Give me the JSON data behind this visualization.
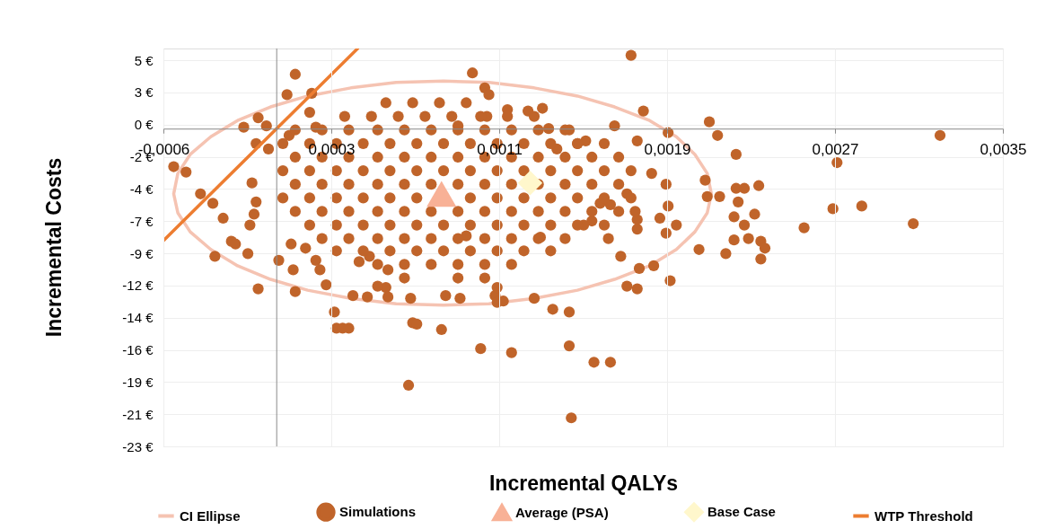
{
  "chart_data": {
    "type": "scatter",
    "xlabel": "Incremental QALYs",
    "ylabel": "Incremental Costs",
    "xlim": [
      -0.00055,
      0.003525
    ],
    "ylim": [
      -23.4,
      5.9
    ],
    "xticks": [
      {
        "value": -0.00055,
        "label": "-0,0006"
      },
      {
        "value": 0.000265,
        "label": "0,0003"
      },
      {
        "value": 0.00108,
        "label": "0,0011"
      },
      {
        "value": 0.001895,
        "label": "0,0019"
      },
      {
        "value": 0.00271,
        "label": "0,0027"
      },
      {
        "value": 0.003525,
        "label": "0,0035"
      }
    ],
    "yticks": [
      {
        "value": -23.4,
        "label": "-23 €"
      },
      {
        "value": -21.03,
        "label": "-21 €"
      },
      {
        "value": -18.66,
        "label": "-19 €"
      },
      {
        "value": -16.29,
        "label": "-16 €"
      },
      {
        "value": -13.92,
        "label": "-14 €"
      },
      {
        "value": -11.55,
        "label": "-12 €"
      },
      {
        "value": -9.18,
        "label": "-9 €"
      },
      {
        "value": -6.81,
        "label": "-7 €"
      },
      {
        "value": -4.44,
        "label": "-4 €"
      },
      {
        "value": -2.07,
        "label": "-2 €"
      },
      {
        "value": 0.3,
        "label": "0 €"
      },
      {
        "value": 2.67,
        "label": "3 €"
      },
      {
        "value": 5.04,
        "label": "5 €"
      }
    ],
    "grid": true,
    "legend": "bottom",
    "series": [
      {
        "name": "CI Ellipse",
        "type": "line",
        "color": "#f5c3b2",
        "x": [
          -0.0005,
          -0.00048,
          -0.00042,
          -0.00032,
          -0.00019,
          -3e-05,
          0.00015,
          0.00036,
          0.00058,
          0.00081,
          0.00103,
          0.00125,
          0.00146,
          0.00164,
          0.00181,
          0.00194,
          0.00203,
          0.00209,
          0.00211,
          null,
          -0.0005,
          -0.00048,
          -0.00042,
          -0.00032,
          -0.00019,
          -3e-05,
          0.00015,
          0.00036,
          0.00058,
          0.00081,
          0.00103,
          0.00125,
          0.00146,
          0.00164,
          0.00181,
          0.00194,
          0.00203,
          0.00209,
          0.00211
        ],
        "values": [
          -4.8,
          -3.3,
          -1.9,
          -0.6,
          0.6,
          1.6,
          2.4,
          3.0,
          3.4,
          3.5,
          3.4,
          3.0,
          2.4,
          1.6,
          0.6,
          -0.6,
          -1.9,
          -3.3,
          -4.8,
          null,
          -4.8,
          -6.2,
          -7.6,
          -8.9,
          -10.1,
          -11.1,
          -11.9,
          -12.5,
          -12.9,
          -13.0,
          -12.9,
          -12.5,
          -11.9,
          -11.1,
          -10.1,
          -8.9,
          -7.6,
          -6.2,
          -4.8
        ]
      },
      {
        "name": "Simulations",
        "marker": "circle",
        "color": "#c0642a",
        "x": [
          -0.0005,
          -0.00044,
          -0.00037,
          -0.00031,
          -0.00026,
          -0.00022,
          -0.0002,
          -0.0003,
          -9e-05,
          -0.00013,
          -0.00011,
          -0.0001,
          -0.00012,
          -0.00016,
          -9e-05,
          -0.0001,
          -5e-05,
          -4e-05,
          6e-05,
          9e-05,
          5e-05,
          0.00017,
          0.00016,
          0.00019,
          7e-05,
          9e-05,
          0.00014,
          0.00019,
          0.00021,
          0.00028,
          0.00029,
          0.00032,
          0.00035,
          0.00024,
          0.0004,
          0.00044,
          0.00045,
          0.00053,
          0.00054,
          0.00064,
          0.00066,
          0.0008,
          0.00092,
          0.00095,
          0.00101,
          0.00103,
          0.00102,
          0.00088,
          0.00089,
          0.00099,
          0.00114,
          0.00106,
          0.0011,
          0.00107,
          0.00125,
          0.00134,
          0.00142,
          0.00143,
          0.00154,
          0.00162,
          0.00142,
          0.00128,
          0.00129,
          0.00136,
          0.00132,
          0.00142,
          0.00146,
          0.0015,
          0.00164,
          0.00172,
          0.00178,
          0.00182,
          0.00189,
          0.0019,
          0.00186,
          0.00189,
          0.00194,
          0.0021,
          0.00214,
          0.00208,
          0.00209,
          0.00223,
          0.00222,
          0.00227,
          0.00232,
          0.00229,
          0.0017,
          0.00175,
          0.00175,
          0.00175,
          0.00174,
          0.0017,
          0.00162,
          0.00153,
          0.00157,
          0.00149,
          0.00161,
          0.00322,
          0.00272,
          0.0027,
          0.00284,
          0.00309,
          0.00256,
          0.00235,
          0.00237,
          0.00235,
          0.00222,
          0.00218,
          0.00205,
          0.00191,
          0.00183,
          0.00176,
          0.00167,
          0.00223,
          0.00234,
          0.00227,
          0.00224,
          0.00215,
          0.0019,
          0.00175,
          0.00122,
          0.00112,
          -0.00014,
          1e-05,
          8e-05,
          0.00037,
          0.00049,
          0.00054,
          0.00065,
          0.00068,
          0.00082,
          0.00107,
          0.00053,
          0.00066,
          0.00079,
          0.00092,
          0.00033,
          0.00046,
          0.00059,
          0.00072,
          0.00085,
          0.00099,
          0.00112,
          0.00125,
          9e-05,
          0.00022,
          0.00035,
          0.00049,
          0.00062,
          0.00075,
          0.00088,
          0.00101,
          0.00114,
          0.00127,
          0.0014,
          3e-05,
          0.00016,
          0.00029,
          0.00042,
          0.00055,
          0.00068,
          0.00081,
          0.00094,
          0.00107,
          0.0012,
          0.00133,
          0.00146,
          0.00159,
          9e-05,
          0.00022,
          0.00035,
          0.00049,
          0.00062,
          0.00075,
          0.00088,
          0.00101,
          0.00114,
          0.00127,
          0.0014,
          0.00153,
          0.00166,
          3e-05,
          0.00016,
          0.00029,
          0.00042,
          0.00055,
          0.00068,
          0.00081,
          0.00094,
          0.00107,
          0.0012,
          0.00133,
          0.00146,
          0.00159,
          0.00172,
          9e-05,
          0.00022,
          0.00035,
          0.00049,
          0.00062,
          0.00075,
          0.00088,
          0.00101,
          0.00114,
          0.00127,
          0.0014,
          0.00153,
          0.00166,
          3e-05,
          0.00016,
          0.00029,
          0.00042,
          0.00055,
          0.00068,
          0.00094,
          0.00107,
          0.0012,
          0.00133,
          0.00146,
          0.00159,
          0.00172,
          9e-05,
          0.00022,
          0.00035,
          0.00049,
          0.00062,
          0.00075,
          0.00088,
          0.00101,
          0.00114,
          0.00127,
          0.0014,
          0.00153,
          0.00166,
          0.00016,
          0.00029,
          0.00042,
          0.00055,
          0.00068,
          0.00081,
          0.00094,
          0.00107,
          0.0012,
          0.00133,
          0.00146,
          0.00159,
          0.00022,
          0.00035,
          0.00049,
          0.00062,
          0.00075,
          0.00088,
          0.00101,
          0.00114,
          0.00127,
          0.0014,
          0.00029,
          0.00042,
          0.00055,
          0.00068,
          0.00081,
          0.00094,
          0.00107,
          0.0012,
          0.00133,
          0.00049,
          0.00062,
          0.00075,
          0.00088,
          0.00101,
          0.00114,
          0.00062,
          0.00088,
          0.00101
        ],
        "values": [
          -2.8,
          -3.2,
          -4.8,
          -5.5,
          -6.6,
          -8.3,
          -8.5,
          -9.4,
          -11.8,
          -7.1,
          -6.3,
          -5.4,
          -4.0,
          0.1,
          0.8,
          -1.1,
          0.2,
          -1.5,
          -0.5,
          4.0,
          2.5,
          2.6,
          1.2,
          0.1,
          -8.5,
          -12.0,
          -8.8,
          -9.7,
          -10.4,
          -13.5,
          -14.7,
          -14.7,
          -14.7,
          -11.5,
          -9.8,
          -12.4,
          -9.4,
          -11.7,
          -10.4,
          -18.9,
          -14.3,
          -14.8,
          -7.9,
          4.1,
          3.0,
          2.5,
          0.9,
          0.2,
          -12.5,
          -16.2,
          -16.5,
          -12.3,
          -12.7,
          -11.7,
          -12.5,
          -13.3,
          -16.0,
          -21.3,
          -17.2,
          -17.2,
          -13.5,
          -8.0,
          1.5,
          -1.5,
          0.0,
          -0.1,
          -1.1,
          -0.9,
          0.2,
          5.4,
          1.3,
          -3.3,
          -4.1,
          -5.7,
          -6.6,
          -7.7,
          -7.1,
          0.5,
          -0.5,
          -3.8,
          -5.0,
          -4.4,
          -6.5,
          -7.1,
          -6.3,
          -8.1,
          -11.6,
          -11.8,
          -7.4,
          -6.7,
          -6.1,
          -4.8,
          -5.6,
          -6.8,
          -5.5,
          -7.1,
          -8.1,
          -0.5,
          -2.5,
          -5.9,
          -5.7,
          -7.0,
          -7.3,
          -8.3,
          -8.8,
          -9.6,
          -8.2,
          -9.2,
          -8.9,
          -11.2,
          -10.1,
          -10.3,
          -9.4,
          -1.9,
          -4.2,
          -4.4,
          -5.4,
          -5.0,
          -0.3,
          -0.9,
          1.3,
          1.4,
          -9.2,
          -9.7,
          -10.4,
          -12.3,
          -11.6,
          -12.4,
          -12.5,
          -14.4,
          -12.3,
          -12.8,
          1.9,
          1.9,
          1.9,
          1.9,
          0.9,
          0.9,
          0.9,
          0.9,
          0.9,
          0.9,
          0.9,
          0.9,
          -0.1,
          -0.1,
          -0.1,
          -0.1,
          -0.1,
          -0.1,
          -0.1,
          -0.1,
          -0.1,
          -0.1,
          -0.1,
          -1.1,
          -1.1,
          -1.1,
          -1.1,
          -1.1,
          -1.1,
          -1.1,
          -1.1,
          -1.1,
          -1.1,
          -1.1,
          -1.1,
          -1.1,
          -2.1,
          -2.1,
          -2.1,
          -2.1,
          -2.1,
          -2.1,
          -2.1,
          -2.1,
          -2.1,
          -2.1,
          -2.1,
          -2.1,
          -2.1,
          -3.1,
          -3.1,
          -3.1,
          -3.1,
          -3.1,
          -3.1,
          -3.1,
          -3.1,
          -3.1,
          -3.1,
          -3.1,
          -3.1,
          -3.1,
          -3.1,
          -4.1,
          -4.1,
          -4.1,
          -4.1,
          -4.1,
          -4.1,
          -4.1,
          -4.1,
          -4.1,
          -4.1,
          -4.1,
          -4.1,
          -4.1,
          -5.1,
          -5.1,
          -5.1,
          -5.1,
          -5.1,
          -5.1,
          -5.1,
          -5.1,
          -5.1,
          -5.1,
          -5.1,
          -5.1,
          -5.1,
          -6.1,
          -6.1,
          -6.1,
          -6.1,
          -6.1,
          -6.1,
          -6.1,
          -6.1,
          -6.1,
          -6.1,
          -6.1,
          -6.1,
          -6.1,
          -7.1,
          -7.1,
          -7.1,
          -7.1,
          -7.1,
          -7.1,
          -7.1,
          -7.1,
          -7.1,
          -7.1,
          -7.1,
          -7.1,
          -8.1,
          -8.1,
          -8.1,
          -8.1,
          -8.1,
          -8.1,
          -8.1,
          -8.1,
          -8.1,
          -8.1,
          -9.0,
          -9.0,
          -9.0,
          -9.0,
          -9.0,
          -9.0,
          -9.0,
          -9.0,
          -9.0,
          -10.0,
          -10.0,
          -10.0,
          -10.0,
          -10.0,
          -10.0,
          -11.0,
          -11.0,
          -11.0
        ]
      },
      {
        "name": "Average (PSA)",
        "marker": "triangle",
        "color": "#f8b196",
        "x": [
          0.0008
        ],
        "values": [
          -4.8
        ]
      },
      {
        "name": "Base Case",
        "marker": "diamond",
        "color": "#fff7cc",
        "x": [
          0.00123
        ],
        "values": [
          -4.0
        ]
      },
      {
        "name": "WTP Threshold",
        "type": "line",
        "color": "#ed7d31",
        "x": [
          -0.00055,
          0.000393
        ],
        "values": [
          -8.25,
          5.9
        ]
      }
    ]
  }
}
